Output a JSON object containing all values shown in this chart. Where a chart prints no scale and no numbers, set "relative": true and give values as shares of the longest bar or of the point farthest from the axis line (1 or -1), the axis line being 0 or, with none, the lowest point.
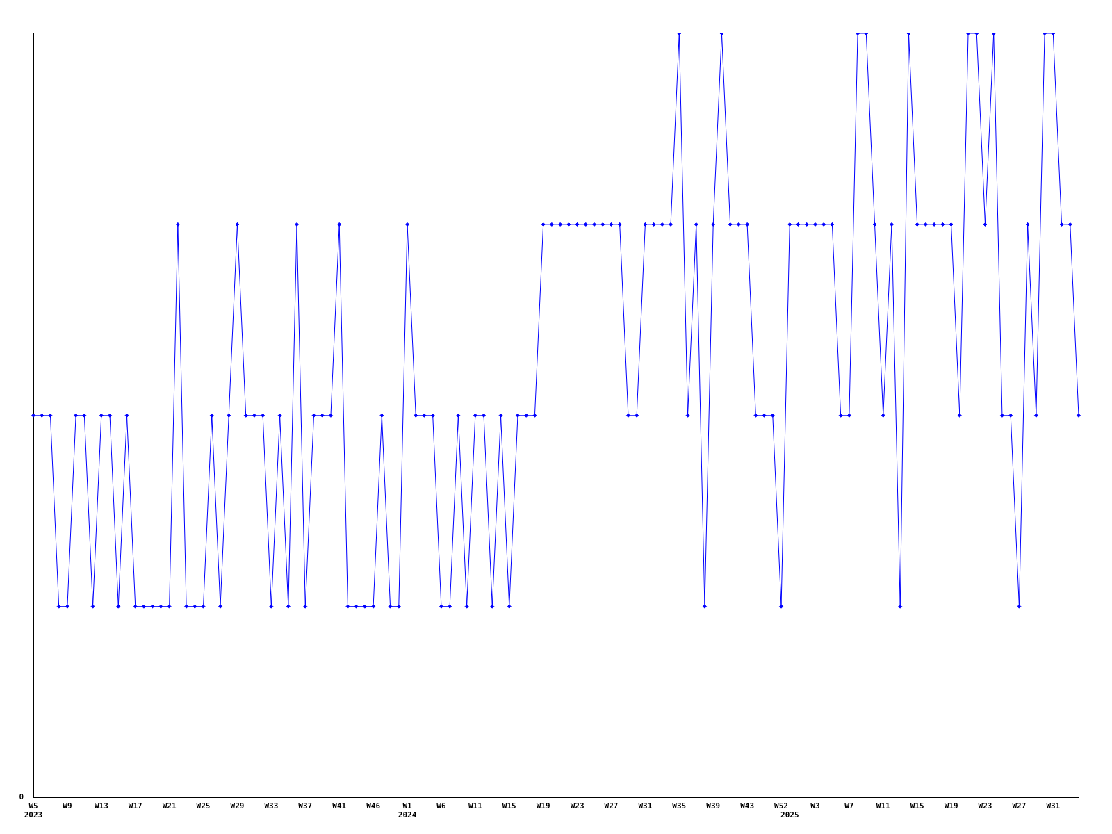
{
  "chart_data": {
    "type": "line",
    "relative": true,
    "color": "#0000ff",
    "marker": "diamond",
    "grid": false,
    "legend": false,
    "categories": [
      "W5\n2023",
      null,
      null,
      null,
      "W9",
      null,
      null,
      null,
      "W13",
      null,
      null,
      null,
      "W17",
      null,
      null,
      null,
      "W21",
      null,
      null,
      null,
      "W25",
      null,
      null,
      null,
      "W29",
      null,
      null,
      null,
      "W33",
      null,
      null,
      null,
      "W37",
      null,
      null,
      null,
      "W41",
      null,
      null,
      null,
      "W46",
      null,
      null,
      null,
      "W1\n2024",
      null,
      null,
      null,
      "W6",
      null,
      null,
      null,
      "W11",
      null,
      null,
      null,
      "W15",
      null,
      null,
      null,
      "W19",
      null,
      null,
      null,
      "W23",
      null,
      null,
      null,
      "W27",
      null,
      null,
      null,
      "W31",
      null,
      null,
      null,
      "W35",
      null,
      null,
      null,
      "W39",
      null,
      null,
      null,
      "W43",
      null,
      null,
      null,
      "W52",
      "\n2025",
      null,
      null,
      "W3",
      null,
      null,
      null,
      "W7",
      null,
      null,
      null,
      "W11",
      null,
      null,
      null,
      "W15",
      null,
      null,
      null,
      "W19",
      null,
      null,
      null,
      "W23",
      null,
      null,
      null,
      "W27",
      null,
      null,
      null,
      "W31",
      null,
      null,
      null
    ],
    "values": [
      0.5,
      0.5,
      0.5,
      0.25,
      0.25,
      0.5,
      0.5,
      0.25,
      0.5,
      0.5,
      0.25,
      0.5,
      0.25,
      0.25,
      0.25,
      0.25,
      0.25,
      0.75,
      0.25,
      0.25,
      0.25,
      0.5,
      0.25,
      0.5,
      0.75,
      0.5,
      0.5,
      0.5,
      0.25,
      0.5,
      0.25,
      0.75,
      0.25,
      0.5,
      0.5,
      0.5,
      0.75,
      0.25,
      0.25,
      0.25,
      0.25,
      0.5,
      0.25,
      0.25,
      0.75,
      0.5,
      0.5,
      0.5,
      0.25,
      0.25,
      0.5,
      0.25,
      0.5,
      0.5,
      0.25,
      0.5,
      0.25,
      0.5,
      0.5,
      0.5,
      0.75,
      0.75,
      0.75,
      0.75,
      0.75,
      0.75,
      0.75,
      0.75,
      0.75,
      0.75,
      0.5,
      0.5,
      0.75,
      0.75,
      0.75,
      0.75,
      1,
      0.5,
      0.75,
      0.25,
      0.75,
      1,
      0.75,
      0.75,
      0.75,
      0.5,
      0.5,
      0.5,
      0.25,
      0.75,
      0.75,
      0.75,
      0.75,
      0.75,
      0.75,
      0.5,
      0.5,
      1,
      1,
      0.75,
      0.5,
      0.75,
      0.25,
      1,
      0.75,
      0.75,
      0.75,
      0.75,
      0.75,
      0.5,
      1,
      1,
      0.75,
      1,
      0.5,
      0.5,
      0.25,
      0.75,
      0.5,
      1,
      1,
      0.75,
      0.75,
      0.5
    ],
    "annotations": [
      "0"
    ]
  }
}
